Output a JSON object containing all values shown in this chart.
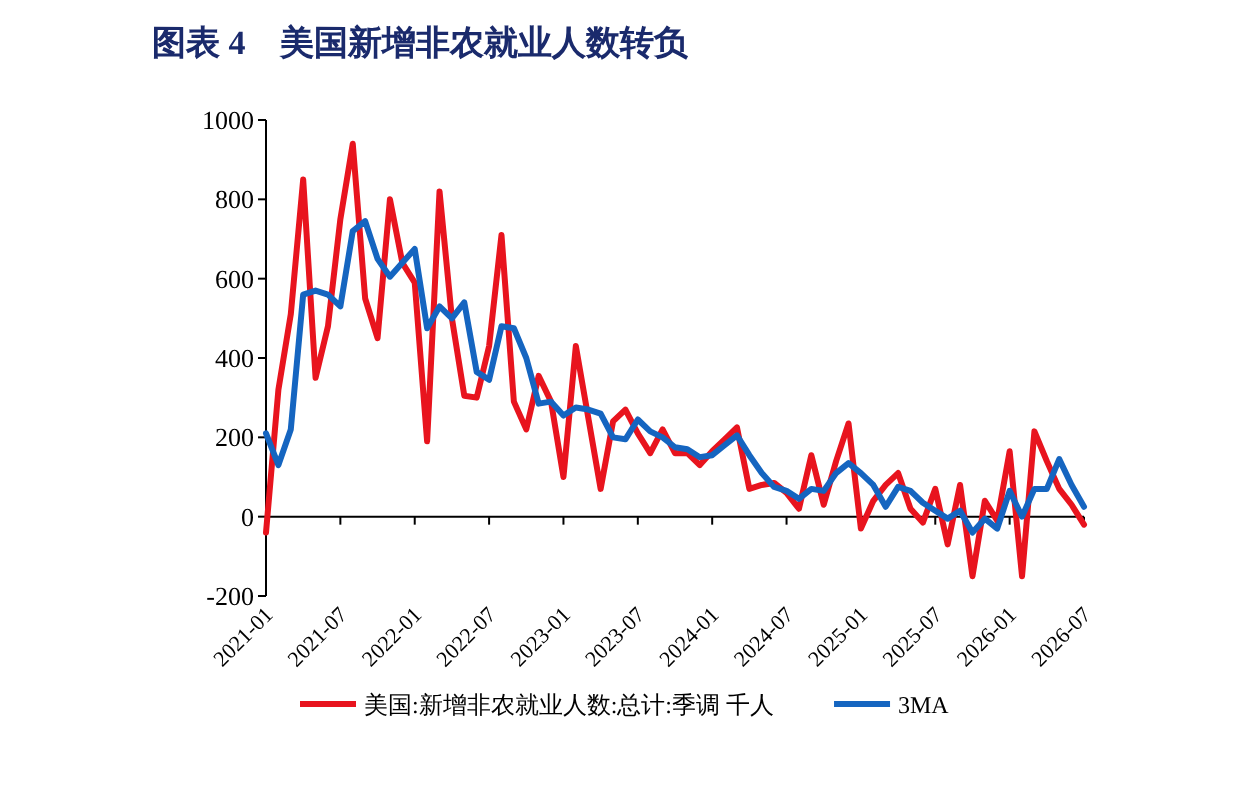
{
  "chart_data": {
    "type": "line",
    "title": "图表 4　美国新增非农就业人数转负",
    "x": [
      "2021-01",
      "2021-02",
      "2021-03",
      "2021-04",
      "2021-05",
      "2021-06",
      "2021-07",
      "2021-08",
      "2021-09",
      "2021-10",
      "2021-11",
      "2021-12",
      "2022-01",
      "2022-02",
      "2022-03",
      "2022-04",
      "2022-05",
      "2022-06",
      "2022-07",
      "2022-08",
      "2022-09",
      "2022-10",
      "2022-11",
      "2022-12",
      "2023-01",
      "2023-02",
      "2023-03",
      "2023-04",
      "2023-05",
      "2023-06",
      "2023-07",
      "2023-08",
      "2023-09",
      "2023-10",
      "2023-11",
      "2023-12",
      "2024-01",
      "2024-02",
      "2024-03",
      "2024-04",
      "2024-05",
      "2024-06",
      "2024-07",
      "2024-08",
      "2024-09",
      "2024-10",
      "2024-11",
      "2024-12",
      "2025-01",
      "2025-02",
      "2025-03",
      "2025-04",
      "2025-05",
      "2025-06",
      "2025-07",
      "2025-08",
      "2025-09",
      "2025-10",
      "2025-11",
      "2025-12",
      "2026-01",
      "2026-02",
      "2026-03",
      "2026-04",
      "2026-05",
      "2026-06",
      "2026-07"
    ],
    "series": [
      {
        "name": "美国:新增非农就业人数:总计:季调 千人",
        "color": "#e8141e",
        "values": [
          -40,
          320,
          510,
          850,
          350,
          480,
          750,
          940,
          550,
          450,
          800,
          640,
          590,
          190,
          820,
          500,
          305,
          300,
          430,
          710,
          290,
          220,
          355,
          290,
          100,
          430,
          250,
          70,
          240,
          270,
          210,
          160,
          220,
          160,
          160,
          130,
          165,
          195,
          225,
          70,
          80,
          85,
          60,
          20,
          155,
          30,
          140,
          235,
          -30,
          40,
          80,
          110,
          20,
          -15,
          70,
          -70,
          80,
          -150,
          40,
          -10,
          165,
          -150,
          215,
          140,
          70,
          30,
          -20
        ]
      },
      {
        "name": "3MA",
        "color": "#1565c0",
        "values": [
          210,
          130,
          220,
          560,
          570,
          560,
          530,
          720,
          745,
          650,
          605,
          640,
          675,
          475,
          530,
          500,
          540,
          365,
          345,
          480,
          475,
          400,
          285,
          290,
          255,
          275,
          270,
          260,
          200,
          195,
          245,
          215,
          200,
          175,
          170,
          150,
          155,
          180,
          205,
          155,
          110,
          75,
          65,
          45,
          70,
          65,
          110,
          135,
          110,
          80,
          25,
          75,
          65,
          35,
          15,
          -5,
          15,
          -40,
          -5,
          -30,
          65,
          0,
          70,
          70,
          145,
          80,
          25
        ]
      }
    ],
    "xlim": [
      "2021-01",
      "2026-07"
    ],
    "xticks": [
      "2021-01",
      "2021-07",
      "2022-01",
      "2022-07",
      "2023-01",
      "2023-07",
      "2024-01",
      "2024-07",
      "2025-01",
      "2025-07",
      "2026-01",
      "2026-07"
    ],
    "ylim": [
      -200,
      1000
    ],
    "yticks": [
      -200,
      0,
      200,
      400,
      600,
      800,
      1000
    ],
    "legend": "bottom",
    "line_style": "solid",
    "marker": "none"
  }
}
